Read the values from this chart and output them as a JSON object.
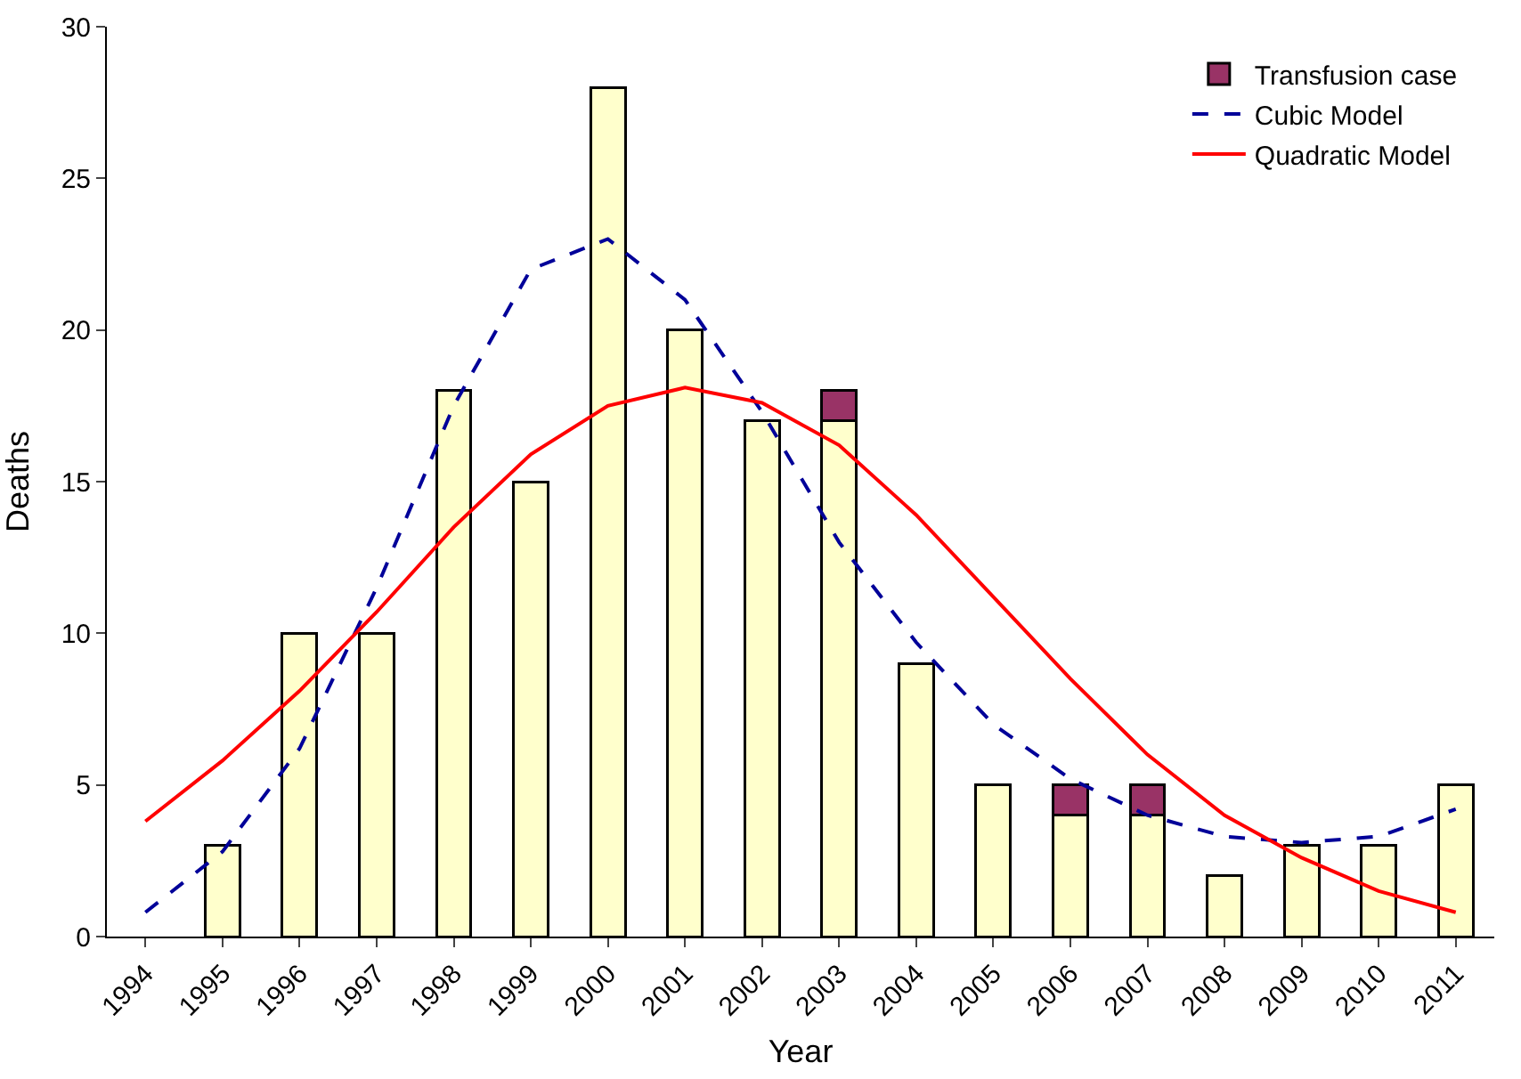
{
  "chart_data": {
    "type": "bar",
    "xlabel": "Year",
    "ylabel": "Deaths",
    "categories": [
      "1994",
      "1995",
      "1996",
      "1997",
      "1998",
      "1999",
      "2000",
      "2001",
      "2002",
      "2003",
      "2004",
      "2005",
      "2006",
      "2007",
      "2008",
      "2009",
      "2010",
      "2011"
    ],
    "stacked": true,
    "ylim": [
      0,
      30
    ],
    "yticks": [
      0,
      5,
      10,
      15,
      20,
      25,
      30
    ],
    "grid": false,
    "legend": "top right",
    "marker": "none",
    "series": [
      {
        "color": "#ffffcc",
        "values": [
          null,
          3,
          10,
          10,
          18,
          15,
          28,
          20,
          17,
          17,
          9,
          5,
          4,
          4,
          2,
          3,
          3,
          5
        ]
      },
      {
        "name": "Transfusion case",
        "color": "#993366",
        "values": [
          null,
          null,
          null,
          null,
          null,
          null,
          null,
          null,
          null,
          1,
          null,
          null,
          1,
          1,
          null,
          null,
          null,
          null
        ]
      },
      {
        "name": "Cubic Model",
        "type": "line",
        "line_style": "dashed",
        "color": "#000099",
        "values": [
          0.8,
          2.8,
          6.2,
          11.5,
          17.5,
          22,
          23,
          21,
          17.3,
          13,
          9.7,
          7,
          5.2,
          4,
          3.3,
          3.1,
          3.3,
          4.2
        ]
      },
      {
        "name": "Quadratic Model",
        "type": "line",
        "line_style": "solid",
        "color": "#ff0000",
        "values": [
          3.8,
          5.8,
          8.1,
          10.7,
          13.5,
          15.9,
          17.5,
          18.1,
          17.6,
          16.2,
          13.9,
          11.2,
          8.5,
          6,
          4,
          2.6,
          1.5,
          0.8
        ]
      }
    ]
  }
}
